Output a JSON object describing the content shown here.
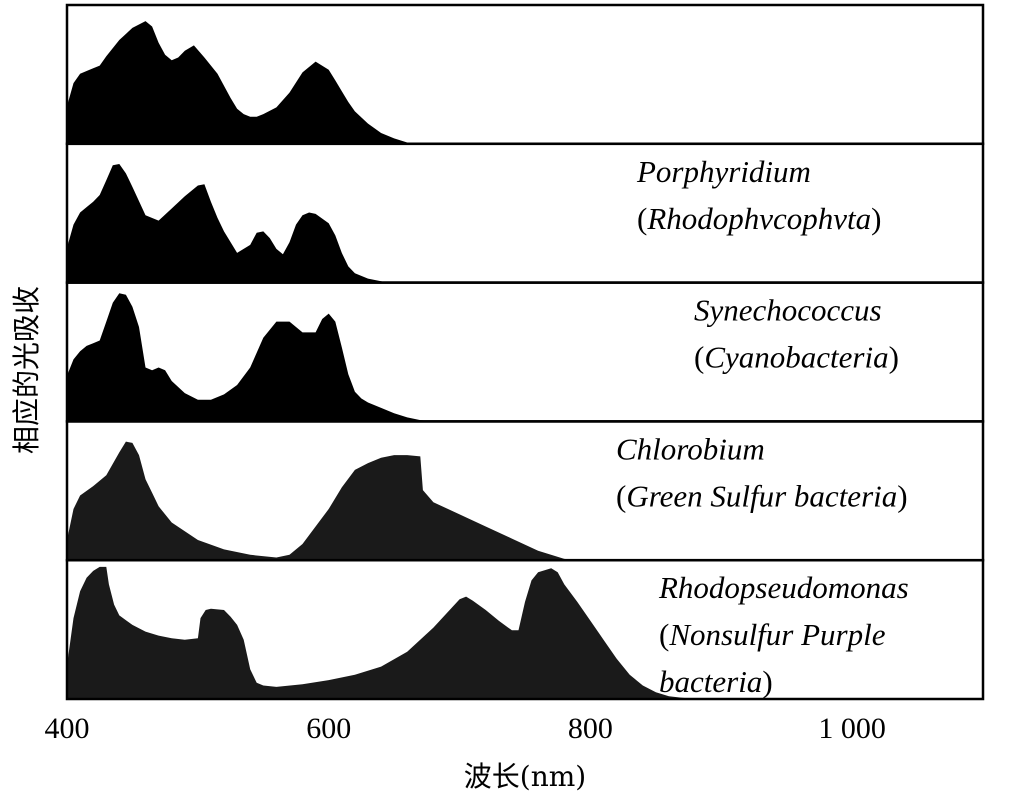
{
  "chart_data": {
    "type": "area",
    "title": "",
    "xlabel": "波长(nm)",
    "ylabel": "相应的光吸收",
    "xlim": [
      400,
      1100
    ],
    "xticks": [
      {
        "value": 400,
        "label": "400"
      },
      {
        "value": 600,
        "label": "600"
      },
      {
        "value": 800,
        "label": "800"
      },
      {
        "value": 1000,
        "label": "1 000"
      }
    ],
    "ylim": [
      0,
      1
    ],
    "series": [
      {
        "name": "",
        "caption": [],
        "fill": "#000000",
        "x": [
          400,
          405,
          410,
          415,
          420,
          425,
          430,
          440,
          450,
          460,
          465,
          470,
          475,
          480,
          485,
          490,
          497,
          505,
          515,
          525,
          530,
          535,
          540,
          545,
          550,
          560,
          570,
          580,
          590,
          600,
          605,
          610,
          615,
          620,
          630,
          640,
          650,
          660,
          665
        ],
        "y": [
          0.28,
          0.45,
          0.52,
          0.54,
          0.56,
          0.58,
          0.65,
          0.77,
          0.86,
          0.91,
          0.87,
          0.75,
          0.66,
          0.62,
          0.64,
          0.69,
          0.73,
          0.64,
          0.52,
          0.34,
          0.26,
          0.22,
          0.2,
          0.2,
          0.22,
          0.27,
          0.38,
          0.53,
          0.61,
          0.55,
          0.47,
          0.39,
          0.31,
          0.24,
          0.15,
          0.08,
          0.04,
          0.01,
          0.0
        ]
      },
      {
        "name": "Porphyridium",
        "caption": [
          [
            {
              "t": "Porphyridium",
              "i": true
            }
          ],
          [
            {
              "t": "(",
              "i": false
            },
            {
              "t": "Rhodophvcophvta",
              "i": true
            },
            {
              "t": ")",
              "i": false
            }
          ]
        ],
        "fill": "#000000",
        "x": [
          400,
          405,
          410,
          415,
          420,
          425,
          430,
          435,
          440,
          445,
          450,
          460,
          470,
          480,
          490,
          500,
          505,
          510,
          515,
          520,
          530,
          540,
          545,
          550,
          555,
          560,
          565,
          570,
          575,
          580,
          585,
          590,
          600,
          605,
          610,
          615,
          620,
          630,
          640,
          645
        ],
        "y": [
          0.26,
          0.43,
          0.52,
          0.56,
          0.6,
          0.65,
          0.76,
          0.87,
          0.88,
          0.81,
          0.71,
          0.5,
          0.46,
          0.55,
          0.64,
          0.72,
          0.73,
          0.6,
          0.48,
          0.38,
          0.22,
          0.28,
          0.37,
          0.38,
          0.33,
          0.25,
          0.21,
          0.3,
          0.43,
          0.5,
          0.52,
          0.51,
          0.44,
          0.35,
          0.22,
          0.12,
          0.07,
          0.03,
          0.01,
          0.0
        ]
      },
      {
        "name": "Synechococcus",
        "caption": [
          [
            {
              "t": "Synechococcus",
              "i": true
            }
          ],
          [
            {
              "t": "(",
              "i": false
            },
            {
              "t": "Cyanobacteria",
              "i": true
            },
            {
              "t": ")",
              "i": false
            }
          ]
        ],
        "fill": "#000000",
        "x": [
          400,
          405,
          410,
          415,
          420,
          425,
          430,
          435,
          440,
          445,
          450,
          455,
          460,
          465,
          470,
          475,
          480,
          490,
          500,
          510,
          520,
          530,
          540,
          550,
          560,
          570,
          580,
          590,
          595,
          600,
          605,
          610,
          615,
          620,
          625,
          630,
          640,
          650,
          660,
          670,
          680
        ],
        "y": [
          0.34,
          0.46,
          0.52,
          0.56,
          0.58,
          0.6,
          0.74,
          0.88,
          0.95,
          0.94,
          0.85,
          0.7,
          0.4,
          0.38,
          0.4,
          0.38,
          0.3,
          0.21,
          0.16,
          0.16,
          0.2,
          0.27,
          0.4,
          0.62,
          0.74,
          0.74,
          0.66,
          0.66,
          0.76,
          0.8,
          0.74,
          0.55,
          0.35,
          0.22,
          0.17,
          0.14,
          0.1,
          0.06,
          0.03,
          0.01,
          0.0
        ]
      },
      {
        "name": "Chlorobium",
        "caption": [
          [
            {
              "t": "Chlorobium",
              "i": true
            }
          ],
          [
            {
              "t": "(",
              "i": false
            },
            {
              "t": "Green Sulfur bacteria",
              "i": true
            },
            {
              "t": ")",
              "i": false
            }
          ]
        ],
        "fill": "#1a1a1a",
        "x": [
          400,
          405,
          410,
          420,
          430,
          440,
          445,
          450,
          455,
          460,
          465,
          470,
          480,
          500,
          520,
          540,
          560,
          570,
          580,
          600,
          610,
          620,
          630,
          640,
          650,
          660,
          670,
          672,
          680,
          700,
          720,
          740,
          760,
          780,
          790
        ],
        "y": [
          0.15,
          0.38,
          0.48,
          0.55,
          0.63,
          0.8,
          0.88,
          0.87,
          0.78,
          0.6,
          0.5,
          0.4,
          0.28,
          0.15,
          0.08,
          0.04,
          0.02,
          0.04,
          0.12,
          0.38,
          0.54,
          0.67,
          0.72,
          0.76,
          0.78,
          0.78,
          0.77,
          0.52,
          0.43,
          0.34,
          0.25,
          0.16,
          0.07,
          0.01,
          0.0
        ]
      },
      {
        "name": "Rhodopseudomonas",
        "caption": [
          [
            {
              "t": "Rhodopseudomonas",
              "i": true
            }
          ],
          [
            {
              "t": "(",
              "i": false
            },
            {
              "t": "Nonsulfur Purple",
              "i": true
            }
          ],
          [
            {
              "t": "bacteria",
              "i": true
            },
            {
              "t": ")",
              "i": false
            }
          ]
        ],
        "fill": "#1a1a1a",
        "x": [
          400,
          405,
          410,
          415,
          420,
          425,
          430,
          432,
          436,
          440,
          450,
          460,
          470,
          480,
          490,
          500,
          502,
          506,
          510,
          520,
          525,
          530,
          535,
          540,
          545,
          550,
          560,
          580,
          600,
          620,
          640,
          660,
          680,
          700,
          705,
          710,
          720,
          730,
          740,
          745,
          750,
          755,
          760,
          770,
          775,
          780,
          790,
          800,
          810,
          820,
          830,
          840,
          850,
          860,
          870,
          880
        ],
        "y": [
          0.25,
          0.6,
          0.8,
          0.9,
          0.95,
          0.98,
          0.98,
          0.85,
          0.7,
          0.62,
          0.55,
          0.5,
          0.47,
          0.45,
          0.44,
          0.45,
          0.6,
          0.66,
          0.67,
          0.66,
          0.61,
          0.55,
          0.44,
          0.22,
          0.12,
          0.1,
          0.09,
          0.11,
          0.14,
          0.18,
          0.24,
          0.35,
          0.53,
          0.74,
          0.76,
          0.73,
          0.66,
          0.58,
          0.51,
          0.51,
          0.72,
          0.88,
          0.94,
          0.97,
          0.94,
          0.85,
          0.72,
          0.58,
          0.44,
          0.3,
          0.18,
          0.1,
          0.05,
          0.02,
          0.01,
          0.0
        ]
      }
    ]
  }
}
